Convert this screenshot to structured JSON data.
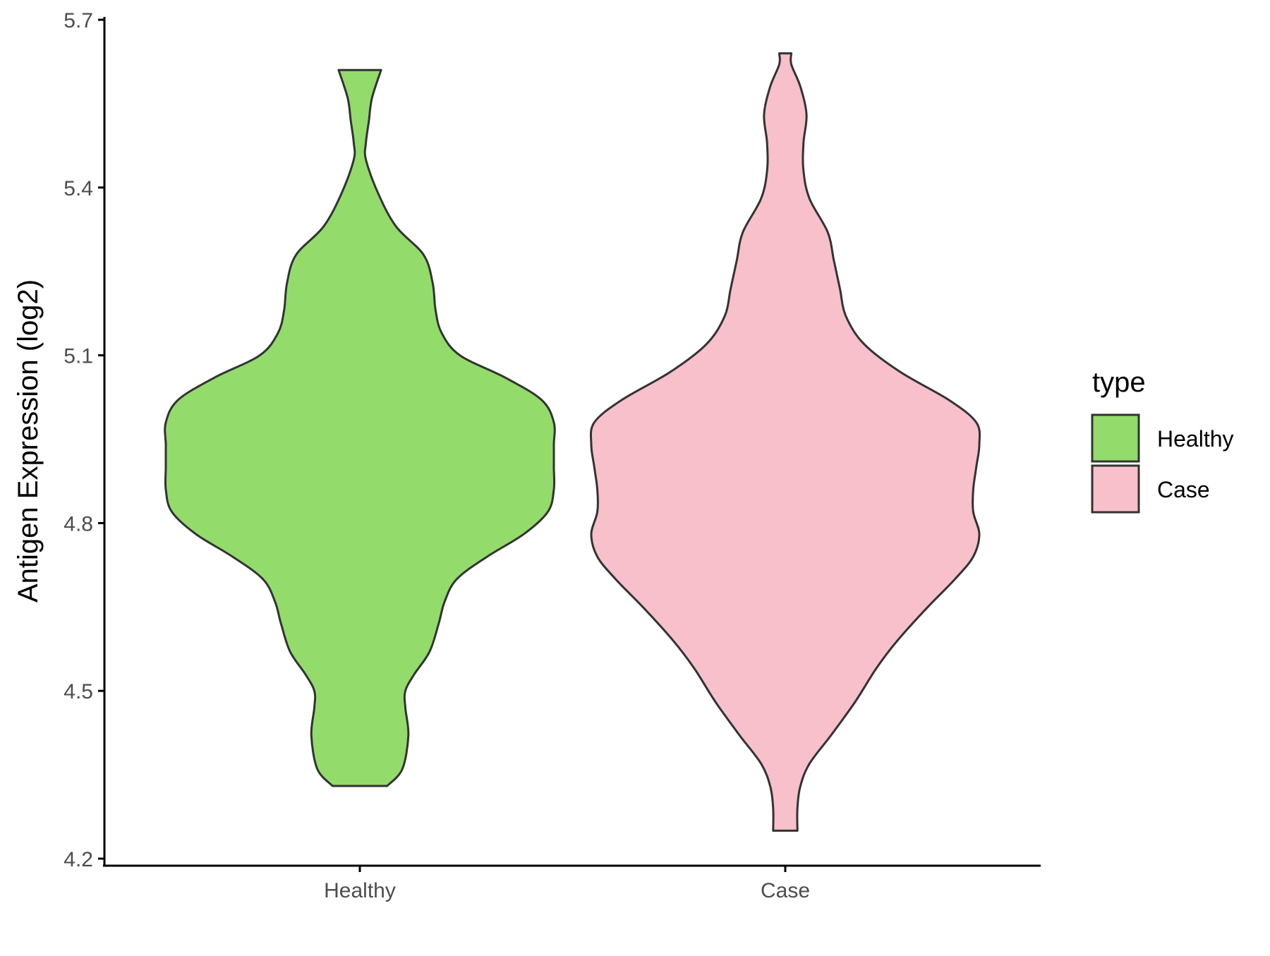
{
  "chart_data": {
    "type": "violin",
    "categories": [
      "Healthy",
      "Case"
    ],
    "ylabel": "Antigen Expression (log2)",
    "xlabel": "",
    "ylim": [
      4.2,
      5.7
    ],
    "yticks": [
      "4.2",
      "4.5",
      "4.8",
      "5.1",
      "5.4",
      "5.7"
    ],
    "grid": false,
    "legend": {
      "title": "type",
      "position": "right",
      "entries": [
        {
          "label": "Healthy",
          "color": "#93DC6B"
        },
        {
          "label": "Case",
          "color": "#F7C0CB"
        }
      ]
    },
    "series": [
      {
        "name": "Healthy",
        "color": "#93DC6B",
        "min": 4.33,
        "max": 5.61,
        "profile": [
          [
            4.33,
            0.09
          ],
          [
            4.36,
            0.14
          ],
          [
            4.42,
            0.16
          ],
          [
            4.47,
            0.15
          ],
          [
            4.5,
            0.15
          ],
          [
            4.53,
            0.18
          ],
          [
            4.57,
            0.23
          ],
          [
            4.62,
            0.26
          ],
          [
            4.66,
            0.28
          ],
          [
            4.7,
            0.32
          ],
          [
            4.74,
            0.42
          ],
          [
            4.78,
            0.54
          ],
          [
            4.82,
            0.62
          ],
          [
            4.86,
            0.64
          ],
          [
            4.9,
            0.64
          ],
          [
            4.94,
            0.64
          ],
          [
            4.98,
            0.64
          ],
          [
            5.02,
            0.6
          ],
          [
            5.06,
            0.48
          ],
          [
            5.1,
            0.33
          ],
          [
            5.14,
            0.27
          ],
          [
            5.18,
            0.25
          ],
          [
            5.23,
            0.24
          ],
          [
            5.28,
            0.21
          ],
          [
            5.33,
            0.12
          ],
          [
            5.39,
            0.06
          ],
          [
            5.45,
            0.02
          ],
          [
            5.48,
            0.02
          ],
          [
            5.52,
            0.03
          ],
          [
            5.56,
            0.04
          ],
          [
            5.61,
            0.07
          ]
        ]
      },
      {
        "name": "Case",
        "color": "#F7C0CB",
        "min": 4.25,
        "max": 5.64,
        "profile": [
          [
            4.25,
            0.04
          ],
          [
            4.29,
            0.04
          ],
          [
            4.33,
            0.05
          ],
          [
            4.37,
            0.08
          ],
          [
            4.42,
            0.15
          ],
          [
            4.48,
            0.23
          ],
          [
            4.54,
            0.3
          ],
          [
            4.59,
            0.37
          ],
          [
            4.65,
            0.47
          ],
          [
            4.7,
            0.56
          ],
          [
            4.74,
            0.62
          ],
          [
            4.78,
            0.64
          ],
          [
            4.82,
            0.62
          ],
          [
            4.86,
            0.62
          ],
          [
            4.9,
            0.63
          ],
          [
            4.94,
            0.64
          ],
          [
            4.98,
            0.63
          ],
          [
            5.02,
            0.54
          ],
          [
            5.07,
            0.38
          ],
          [
            5.12,
            0.26
          ],
          [
            5.17,
            0.2
          ],
          [
            5.22,
            0.18
          ],
          [
            5.27,
            0.16
          ],
          [
            5.32,
            0.14
          ],
          [
            5.38,
            0.08
          ],
          [
            5.43,
            0.06
          ],
          [
            5.48,
            0.06
          ],
          [
            5.53,
            0.07
          ],
          [
            5.58,
            0.05
          ],
          [
            5.62,
            0.02
          ],
          [
            5.64,
            0.02
          ]
        ]
      }
    ]
  }
}
